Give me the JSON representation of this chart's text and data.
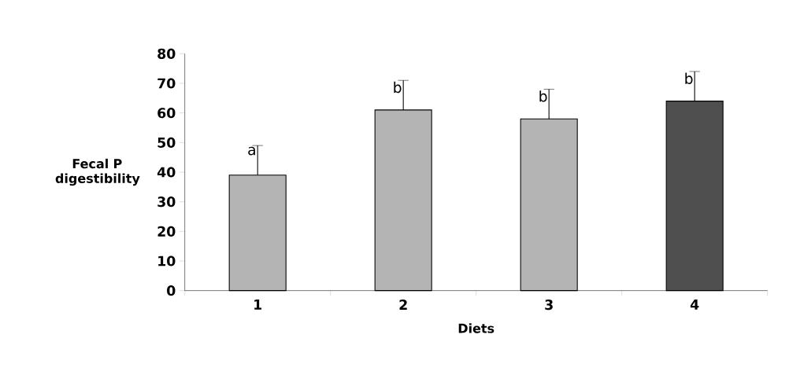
{
  "chart_data": {
    "type": "bar",
    "categories": [
      "1",
      "2",
      "3",
      "4"
    ],
    "values": [
      39,
      61,
      58,
      64
    ],
    "errors": [
      10,
      10,
      10,
      10
    ],
    "colors": [
      "#b4b4b4",
      "#b4b4b4",
      "#b4b4b4",
      "#4f4f4f"
    ],
    "xlabel": "Diets",
    "ylabel": "Fecal P digestibility",
    "ylim": [
      0,
      80
    ],
    "yticks": [
      0,
      10,
      20,
      30,
      40,
      50,
      60,
      70,
      80
    ],
    "annotations": [
      {
        "text": "a",
        "x": "1",
        "y": 49
      },
      {
        "text": "b",
        "x": "2",
        "y": 71
      },
      {
        "text": "b",
        "x": "3",
        "y": 68
      },
      {
        "text": "b",
        "x": "4",
        "y": 74
      }
    ],
    "grid": false
  }
}
